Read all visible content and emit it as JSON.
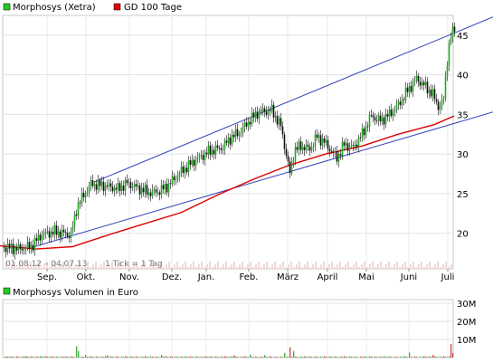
{
  "chart_data": [
    {
      "type": "candlestick",
      "legend": [
        {
          "name": "Morphosys (Xetra)",
          "color": "#22cc22"
        },
        {
          "name": "GD 100 Tage",
          "color": "#dd0000"
        }
      ],
      "date_range_label": "01.08.12 – 04.07.13",
      "tick_note": "1 Tick = 1 Tag",
      "x_tick_labels": [
        "Sep.",
        "Okt.",
        "Nov.",
        "Dez.",
        "Jan.",
        "Feb.",
        "März",
        "April",
        "Mai",
        "Juni",
        "Juli"
      ],
      "y_tick_labels": [
        "20",
        "25",
        "30",
        "35",
        "40",
        "45"
      ],
      "ylim": [
        15.5,
        47.5
      ],
      "grid": true,
      "colors": {
        "up": "#22aa22",
        "down": "#111111",
        "ma": "#dd0000",
        "channel": "#3344bb"
      },
      "price_path": [
        [
          0,
          18.3
        ],
        [
          20,
          18.0
        ],
        [
          35,
          18.4
        ],
        [
          45,
          19.8
        ],
        [
          60,
          20.2
        ],
        [
          78,
          19.8
        ],
        [
          85,
          23.5
        ],
        [
          100,
          26.2
        ],
        [
          115,
          26.0
        ],
        [
          130,
          25.6
        ],
        [
          140,
          26.3
        ],
        [
          150,
          25.8
        ],
        [
          165,
          25.1
        ],
        [
          175,
          25.3
        ],
        [
          185,
          26.0
        ],
        [
          200,
          27.8
        ],
        [
          215,
          29.2
        ],
        [
          230,
          30.3
        ],
        [
          245,
          30.8
        ],
        [
          255,
          32.1
        ],
        [
          265,
          32.8
        ],
        [
          275,
          34.2
        ],
        [
          285,
          35.3
        ],
        [
          300,
          35.5
        ],
        [
          310,
          33.5
        ],
        [
          315,
          30.5
        ],
        [
          320,
          27.5
        ],
        [
          325,
          30.5
        ],
        [
          332,
          31.0
        ],
        [
          342,
          30.6
        ],
        [
          350,
          32.2
        ],
        [
          358,
          31.5
        ],
        [
          365,
          30.5
        ],
        [
          372,
          29.5
        ],
        [
          380,
          31.2
        ],
        [
          390,
          30.8
        ],
        [
          400,
          32.5
        ],
        [
          410,
          34.8
        ],
        [
          420,
          34.2
        ],
        [
          430,
          35.0
        ],
        [
          440,
          36.2
        ],
        [
          450,
          38.0
        ],
        [
          460,
          39.5
        ],
        [
          470,
          38.5
        ],
        [
          478,
          37.5
        ],
        [
          485,
          35.8
        ],
        [
          490,
          37.0
        ],
        [
          493,
          41.0
        ],
        [
          497,
          44.5
        ],
        [
          502,
          46.0
        ]
      ],
      "ma_100": [
        [
          0,
          18.4
        ],
        [
          40,
          18.0
        ],
        [
          80,
          18.3
        ],
        [
          120,
          19.8
        ],
        [
          160,
          21.2
        ],
        [
          200,
          22.6
        ],
        [
          240,
          24.8
        ],
        [
          280,
          26.8
        ],
        [
          320,
          28.6
        ],
        [
          360,
          30.0
        ],
        [
          400,
          31.0
        ],
        [
          440,
          32.5
        ],
        [
          480,
          33.7
        ],
        [
          502,
          34.8
        ]
      ],
      "channel_lines": [
        {
          "from": [
            105,
            26.5
          ],
          "to": [
            545,
            47.3
          ]
        },
        {
          "from": [
            35,
            18.2
          ],
          "to": [
            545,
            35.3
          ]
        }
      ]
    },
    {
      "type": "bar",
      "legend": [
        {
          "name": "Morphosys Volumen in Euro",
          "color": "#22cc22"
        }
      ],
      "y_tick_labels": [
        "10M",
        "20M",
        "30M"
      ],
      "ylim": [
        0,
        32
      ],
      "unit_per_tick": 10,
      "spikes": [
        [
          6,
          0.6
        ],
        [
          26,
          0.6
        ],
        [
          44,
          0.8
        ],
        [
          55,
          1.4
        ],
        [
          84,
          6.3
        ],
        [
          86,
          3.6
        ],
        [
          94,
          1.5
        ],
        [
          118,
          1.2
        ],
        [
          178,
          1.3
        ],
        [
          193,
          1.2
        ],
        [
          258,
          1.3
        ],
        [
          276,
          1.6
        ],
        [
          292,
          1.4
        ],
        [
          314,
          2.6
        ],
        [
          320,
          5.7
        ],
        [
          324,
          3.7
        ],
        [
          371,
          1.5
        ],
        [
          399,
          1.4
        ],
        [
          452,
          2.8
        ],
        [
          459,
          2.0
        ],
        [
          478,
          1.4
        ],
        [
          491,
          3.5
        ],
        [
          495,
          25.0
        ],
        [
          498,
          7.5
        ],
        [
          500,
          2.5
        ]
      ]
    }
  ]
}
